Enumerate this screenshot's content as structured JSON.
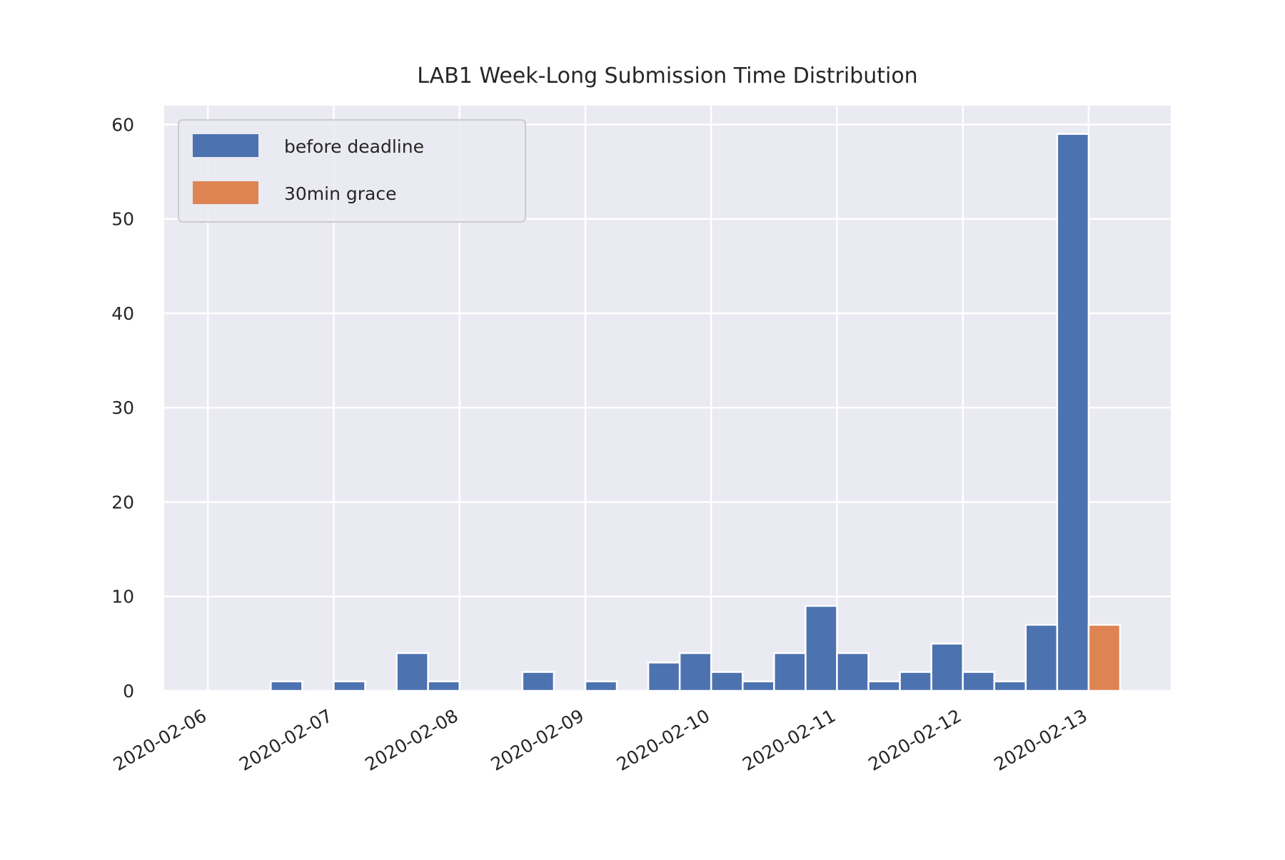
{
  "chart_data": {
    "type": "bar",
    "title": "LAB1 Week-Long Submission Time Distribution",
    "xlabel": "",
    "ylabel": "",
    "x_ticks": [
      "2020-02-06",
      "2020-02-07",
      "2020-02-08",
      "2020-02-09",
      "2020-02-10",
      "2020-02-11",
      "2020-02-12",
      "2020-02-13"
    ],
    "x_range": [
      "2020-02-05 15:40",
      "2020-02-13 15:40"
    ],
    "bin_hours": 6,
    "y_ticks": [
      0,
      10,
      20,
      30,
      40,
      50,
      60
    ],
    "ylim": [
      0,
      62
    ],
    "grid": true,
    "legend_position": "top-left",
    "series": [
      {
        "name": "before deadline",
        "color": "#4c72b0",
        "bins": [
          {
            "start": "2020-02-06 12:00",
            "value": 1
          },
          {
            "start": "2020-02-07 00:00",
            "value": 1
          },
          {
            "start": "2020-02-07 12:00",
            "value": 4
          },
          {
            "start": "2020-02-07 18:00",
            "value": 1
          },
          {
            "start": "2020-02-08 12:00",
            "value": 2
          },
          {
            "start": "2020-02-09 00:00",
            "value": 1
          },
          {
            "start": "2020-02-09 12:00",
            "value": 3
          },
          {
            "start": "2020-02-09 18:00",
            "value": 4
          },
          {
            "start": "2020-02-10 00:00",
            "value": 2
          },
          {
            "start": "2020-02-10 06:00",
            "value": 1
          },
          {
            "start": "2020-02-10 12:00",
            "value": 4
          },
          {
            "start": "2020-02-10 18:00",
            "value": 9
          },
          {
            "start": "2020-02-11 00:00",
            "value": 4
          },
          {
            "start": "2020-02-11 06:00",
            "value": 1
          },
          {
            "start": "2020-02-11 12:00",
            "value": 2
          },
          {
            "start": "2020-02-11 18:00",
            "value": 5
          },
          {
            "start": "2020-02-12 00:00",
            "value": 2
          },
          {
            "start": "2020-02-12 06:00",
            "value": 1
          },
          {
            "start": "2020-02-12 12:00",
            "value": 7
          },
          {
            "start": "2020-02-12 18:00",
            "value": 59
          }
        ]
      },
      {
        "name": "30min grace",
        "color": "#dd8452",
        "bins": [
          {
            "start": "2020-02-13 00:00",
            "value": 7
          }
        ]
      }
    ]
  }
}
